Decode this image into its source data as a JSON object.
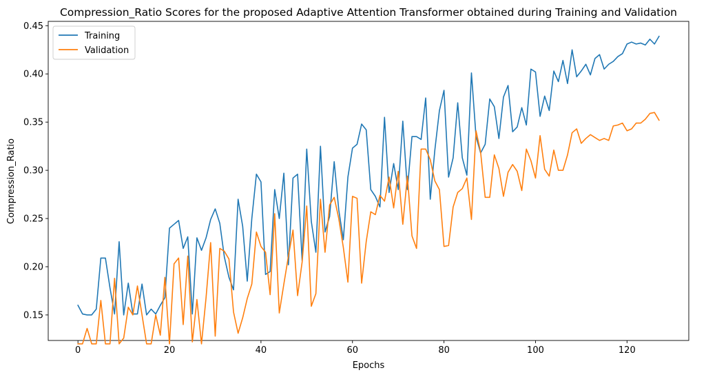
{
  "chart_data": {
    "type": "line",
    "title": "Compression_Ratio Scores for the proposed Adaptive Attention Transformer obtained during Training and Validation",
    "xlabel": "Epochs",
    "ylabel": "Compression_Ratio",
    "xlim": [
      -6.5,
      133.5
    ],
    "ylim": [
      0.1235,
      0.4545
    ],
    "xticks": [
      0,
      20,
      40,
      60,
      80,
      100,
      120
    ],
    "yticks": [
      0.15,
      0.2,
      0.25,
      0.3,
      0.35,
      0.4,
      0.45
    ],
    "ytick_labels": [
      "0.15",
      "0.20",
      "0.25",
      "0.30",
      "0.35",
      "0.40",
      "0.45"
    ],
    "grid": false,
    "legend": "top-left",
    "series": [
      {
        "name": "Training",
        "color": "#1f77b4",
        "values": [
          0.16,
          0.151,
          0.15,
          0.15,
          0.156,
          0.209,
          0.209,
          0.178,
          0.151,
          0.226,
          0.15,
          0.183,
          0.151,
          0.151,
          0.182,
          0.15,
          0.156,
          0.151,
          0.16,
          0.168,
          0.24,
          0.244,
          0.248,
          0.219,
          0.231,
          0.151,
          0.23,
          0.217,
          0.23,
          0.249,
          0.26,
          0.245,
          0.21,
          0.189,
          0.176,
          0.27,
          0.242,
          0.185,
          0.25,
          0.296,
          0.288,
          0.192,
          0.195,
          0.28,
          0.25,
          0.297,
          0.202,
          0.292,
          0.296,
          0.206,
          0.322,
          0.247,
          0.215,
          0.325,
          0.236,
          0.252,
          0.309,
          0.259,
          0.228,
          0.293,
          0.323,
          0.327,
          0.348,
          0.342,
          0.28,
          0.273,
          0.262,
          0.355,
          0.277,
          0.307,
          0.28,
          0.351,
          0.28,
          0.335,
          0.335,
          0.332,
          0.375,
          0.27,
          0.321,
          0.362,
          0.383,
          0.293,
          0.313,
          0.37,
          0.313,
          0.295,
          0.401,
          0.335,
          0.318,
          0.327,
          0.374,
          0.366,
          0.333,
          0.376,
          0.388,
          0.34,
          0.345,
          0.365,
          0.347,
          0.405,
          0.402,
          0.356,
          0.377,
          0.362,
          0.403,
          0.392,
          0.414,
          0.39,
          0.425,
          0.397,
          0.403,
          0.41,
          0.399,
          0.416,
          0.42,
          0.405,
          0.41,
          0.413,
          0.418,
          0.421,
          0.431,
          0.433,
          0.431,
          0.432,
          0.43,
          0.436,
          0.431,
          0.439
        ]
      },
      {
        "name": "Validation",
        "color": "#ff7f0e",
        "values": [
          0.12,
          0.12,
          0.136,
          0.12,
          0.12,
          0.165,
          0.12,
          0.12,
          0.188,
          0.12,
          0.126,
          0.158,
          0.15,
          0.18,
          0.15,
          0.12,
          0.12,
          0.15,
          0.129,
          0.189,
          0.12,
          0.203,
          0.209,
          0.14,
          0.211,
          0.122,
          0.166,
          0.12,
          0.168,
          0.225,
          0.128,
          0.219,
          0.216,
          0.208,
          0.153,
          0.131,
          0.147,
          0.167,
          0.182,
          0.236,
          0.221,
          0.215,
          0.171,
          0.255,
          0.152,
          0.182,
          0.211,
          0.238,
          0.17,
          0.205,
          0.263,
          0.159,
          0.172,
          0.27,
          0.215,
          0.264,
          0.272,
          0.25,
          0.22,
          0.184,
          0.273,
          0.271,
          0.183,
          0.226,
          0.257,
          0.254,
          0.274,
          0.268,
          0.293,
          0.261,
          0.299,
          0.244,
          0.294,
          0.232,
          0.219,
          0.322,
          0.322,
          0.311,
          0.289,
          0.28,
          0.221,
          0.222,
          0.262,
          0.277,
          0.281,
          0.292,
          0.249,
          0.341,
          0.319,
          0.272,
          0.272,
          0.316,
          0.302,
          0.273,
          0.298,
          0.306,
          0.299,
          0.279,
          0.322,
          0.31,
          0.292,
          0.336,
          0.301,
          0.294,
          0.321,
          0.3,
          0.3,
          0.316,
          0.339,
          0.343,
          0.328,
          0.333,
          0.337,
          0.334,
          0.331,
          0.333,
          0.331,
          0.346,
          0.347,
          0.349,
          0.341,
          0.343,
          0.349,
          0.349,
          0.353,
          0.359,
          0.36,
          0.352
        ]
      }
    ]
  }
}
